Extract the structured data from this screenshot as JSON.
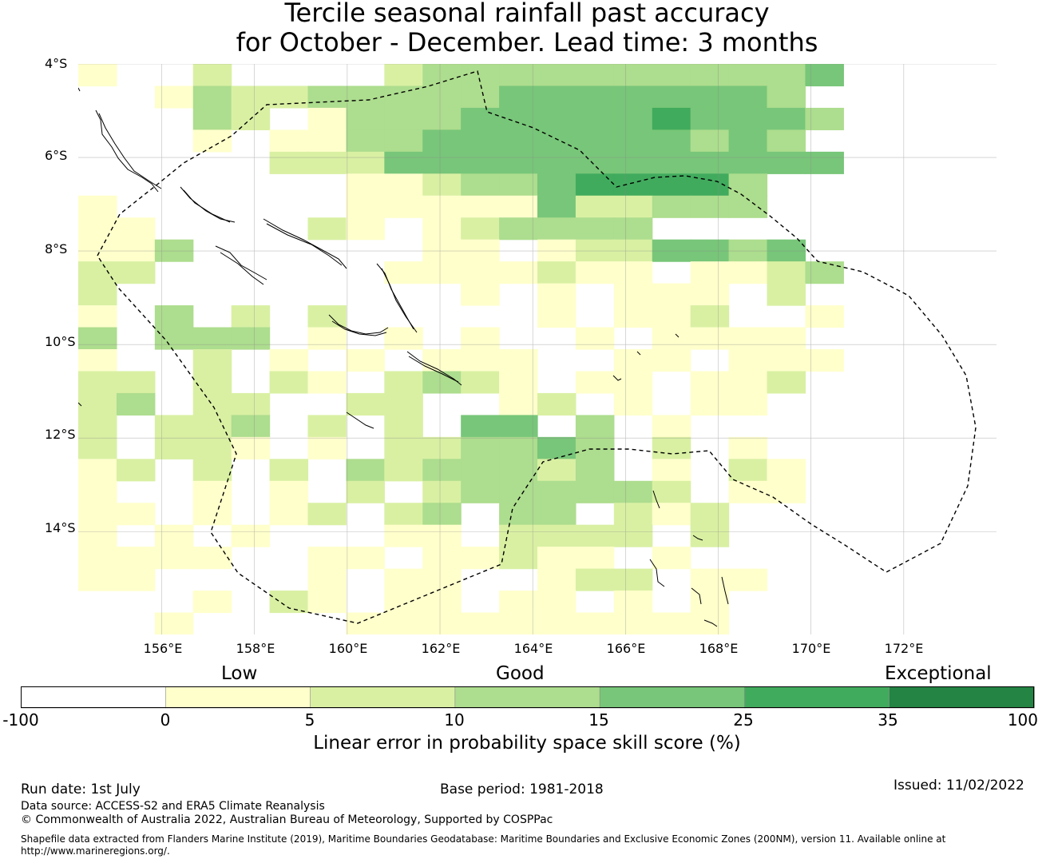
{
  "title": {
    "line1": "Tercile seasonal rainfall past accuracy",
    "line2": "for October - December. Lead time: 3 months"
  },
  "map": {
    "lat_labels": [
      "4°S",
      "6°S",
      "8°S",
      "10°S",
      "12°S",
      "14°S"
    ],
    "lon_labels": [
      "156°E",
      "158°E",
      "160°E",
      "162°E",
      "164°E",
      "166°E",
      "168°E",
      "170°E",
      "172°E"
    ],
    "lat_range": [
      -16.2,
      -4.0
    ],
    "lon_range": [
      154.2,
      174.0
    ],
    "grid_cell_deg": 0.833,
    "eez_boundary": "dashed",
    "colors": [
      "#ffffff",
      "#ffffcc",
      "#d9f0a3",
      "#addd8e",
      "#78c679",
      "#41ab5d",
      "#238443"
    ],
    "skill_grid_rows_top_to_bottom": [
      "1 020000233333333334",
      "  13223333344444443",
      "   32 13334444454443",
      "   1 11334444444343",
      "     222444444444444",
      "       11233455553",
      "1      11111422333",
      "11    21 123333",
      "113      11 1224434",
      "22      1111211 1123",
      "2         1 1 111 2",
      "1 3 2 2     1 112  1",
      "3 333 1 1 1  1 1111",
      "1  2 1 1 111  11 111",
      "22 2 21 2321 11 112",
      "23 22  22  12 1 11",
      "2 223 2 2 44 3 1",
      "2 221 1 223343 2 1",
      "12 2 2 3233323 1 21",
      "1  1 1 2 2333332 11",
      "11 1 12 23 33 212",
      "1 1 1   11 2222 2",
      "1111  11 11211 1",
      "11    1 11  122 11",
      "   1 21 11 11 1 1",
      "  1    1111111111"
    ]
  },
  "colorbar": {
    "categories": {
      "low": "Low",
      "good": "Good",
      "exceptional": "Exceptional"
    },
    "ticks": [
      "-100",
      "0",
      "5",
      "10",
      "15",
      "25",
      "35",
      "100"
    ],
    "colors": [
      "#ffffff",
      "#ffffcc",
      "#d9f0a3",
      "#addd8e",
      "#78c679",
      "#41ab5d",
      "#238443"
    ],
    "label": "Linear error in probability space skill score (%)"
  },
  "footer": {
    "run_date": "Run date: 1st July",
    "base_period": "Base period: 1981-2018",
    "issued": "Issued: 11/02/2022",
    "data_source": "Data source: ACCESS-S2 and ERA5 Climate Reanalysis",
    "copyright": "© Commonwealth of Australia 2022, Australian Bureau of Meteorology, Supported by COSPPac",
    "shapefile_line1": "Shapefile data extracted from Flanders Marine Institute (2019), Maritime Boundaries Geodatabase: Maritime Boundaries and Exclusive Economic Zones (200NM), version 11. Available online at",
    "shapefile_line2": "http://www.marineregions.org/."
  }
}
